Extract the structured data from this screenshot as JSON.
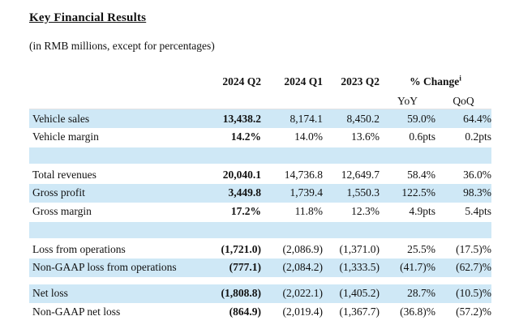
{
  "page": {
    "title": "Key Financial Results",
    "subtitle": "(in RMB millions, except for percentages)"
  },
  "table": {
    "columns": [
      "",
      "2024 Q2",
      "2024 Q1",
      "2023 Q2"
    ],
    "change_header": "% Change",
    "change_superscript": "i",
    "subcolumns": [
      "YoY",
      "QoQ"
    ],
    "highlight_color": "#cfe8f6",
    "rows": [
      {
        "type": "data",
        "shade": true,
        "label": "Vehicle sales",
        "values": [
          "13,438.2",
          "8,174.1",
          "8,450.2",
          "59.0%",
          "64.4%"
        ]
      },
      {
        "type": "data",
        "shade": false,
        "label": "Vehicle margin",
        "values": [
          "14.2%",
          "14.0%",
          "13.6%",
          "0.6pts",
          "0.2pts"
        ]
      },
      {
        "type": "spacer",
        "shade": true
      },
      {
        "type": "data",
        "shade": false,
        "label": "Total revenues",
        "values": [
          "20,040.1",
          "14,736.8",
          "12,649.7",
          "58.4%",
          "36.0%"
        ]
      },
      {
        "type": "data",
        "shade": true,
        "label": "Gross profit",
        "values": [
          "3,449.8",
          "1,739.4",
          "1,550.3",
          "122.5%",
          "98.3%"
        ]
      },
      {
        "type": "data",
        "shade": false,
        "label": "Gross margin",
        "values": [
          "17.2%",
          "11.8%",
          "12.3%",
          "4.9pts",
          "5.4pts"
        ]
      },
      {
        "type": "spacer",
        "shade": true
      },
      {
        "type": "data",
        "shade": false,
        "label": "Loss from operations",
        "values": [
          "(1,721.0)",
          "(2,086.9)",
          "(1,371.0)",
          "25.5%",
          "(17.5)%"
        ]
      },
      {
        "type": "data",
        "shade": true,
        "label": "Non-GAAP loss from operations",
        "values": [
          "(777.1)",
          "(2,084.2)",
          "(1,333.5)",
          "(41.7)%",
          "(62.7)%"
        ]
      },
      {
        "type": "spacer",
        "shade": false
      },
      {
        "type": "data",
        "shade": true,
        "label": "Net loss",
        "values": [
          "(1,808.8)",
          "(2,022.1)",
          "(1,405.2)",
          "28.7%",
          "(10.5)%"
        ]
      },
      {
        "type": "data",
        "shade": false,
        "label": "Non-GAAP net loss",
        "values": [
          "(864.9)",
          "(2,019.4)",
          "(1,367.7)",
          "(36.8)%",
          "(57.2)%"
        ]
      }
    ]
  }
}
